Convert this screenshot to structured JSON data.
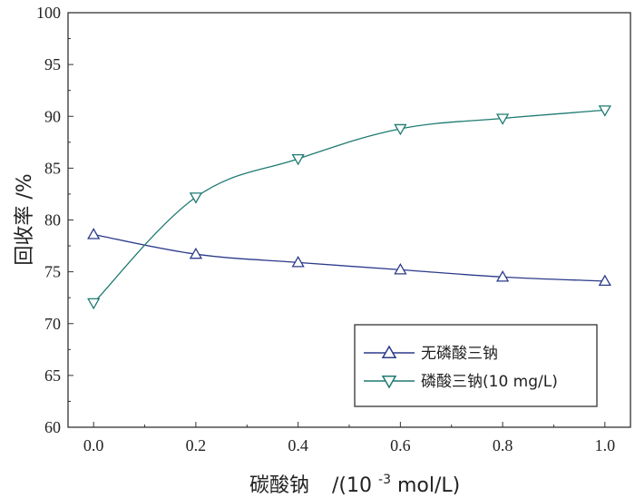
{
  "chart_data": {
    "type": "line",
    "x": [
      0.0,
      0.2,
      0.4,
      0.6,
      0.8,
      1.0
    ],
    "x_tick_labels": [
      "0.0",
      "0.2",
      "0.4",
      "0.6",
      "0.8",
      "1.0"
    ],
    "y_tick_labels": [
      "60",
      "65",
      "70",
      "75",
      "80",
      "85",
      "90",
      "95",
      "100"
    ],
    "xlim": [
      -0.05,
      1.05
    ],
    "ylim": [
      60,
      100
    ],
    "xlabel_main": "碳酸钠",
    "xlabel_unit_prefix": "/(10",
    "xlabel_unit_exp": "-3",
    "xlabel_unit_suffix": "mol/L)",
    "ylabel": "回收率 /%",
    "legend_position": "bottom-right",
    "series": [
      {
        "name": "无磷酸三钠",
        "marker": "triangle-up",
        "color": "#2b3a8a",
        "values": [
          78.6,
          76.7,
          75.9,
          75.2,
          74.5,
          74.1
        ]
      },
      {
        "name": "磷酸三钠(10 mg/L)",
        "marker": "triangle-down",
        "color": "#1e7a72",
        "values": [
          72.0,
          82.2,
          85.9,
          88.8,
          89.8,
          90.6
        ]
      }
    ]
  }
}
